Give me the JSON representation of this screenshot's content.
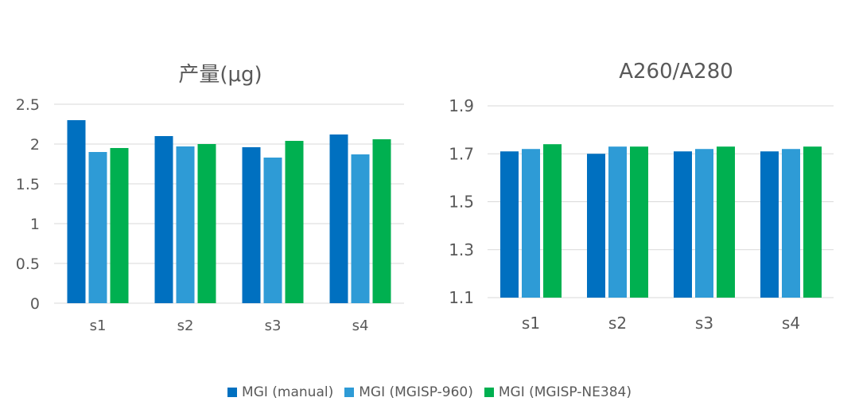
{
  "colors": {
    "series_manual": "#0070C0",
    "series_960": "#2E9BD6",
    "series_ne384": "#00B050",
    "grid": "#D9D9D9",
    "text": "#595959"
  },
  "chart_data": [
    {
      "type": "bar",
      "title": "产量(μg)",
      "categories": [
        "s1",
        "s2",
        "s3",
        "s4"
      ],
      "ylim": [
        0,
        2.5
      ],
      "yticks": [
        "2.5",
        "2",
        "1.5",
        "1",
        "0.5",
        "0"
      ],
      "grid": true,
      "series": [
        {
          "name": "MGI (manual)",
          "values": [
            2.3,
            2.1,
            1.96,
            2.12
          ]
        },
        {
          "name": "MGI (MGISP-960)",
          "values": [
            1.9,
            1.97,
            1.83,
            1.87
          ]
        },
        {
          "name": "MGI (MGISP-NE384)",
          "values": [
            1.95,
            2.0,
            2.04,
            2.06
          ]
        }
      ]
    },
    {
      "type": "bar",
      "title": "A260/A280",
      "categories": [
        "s1",
        "s2",
        "s3",
        "s4"
      ],
      "ylim": [
        1.1,
        1.9
      ],
      "yticks": [
        "1.9",
        "1.7",
        "1.5",
        "1.3",
        "1.1"
      ],
      "grid": true,
      "series": [
        {
          "name": "MGI (manual)",
          "values": [
            1.71,
            1.7,
            1.71,
            1.71
          ]
        },
        {
          "name": "MGI (MGISP-960)",
          "values": [
            1.72,
            1.73,
            1.72,
            1.72
          ]
        },
        {
          "name": "MGI (MGISP-NE384)",
          "values": [
            1.74,
            1.73,
            1.73,
            1.73
          ]
        }
      ]
    }
  ],
  "legend": {
    "position": "bottom",
    "items": [
      "MGI (manual)",
      "MGI (MGISP-960)",
      "MGI (MGISP-NE384)"
    ]
  }
}
